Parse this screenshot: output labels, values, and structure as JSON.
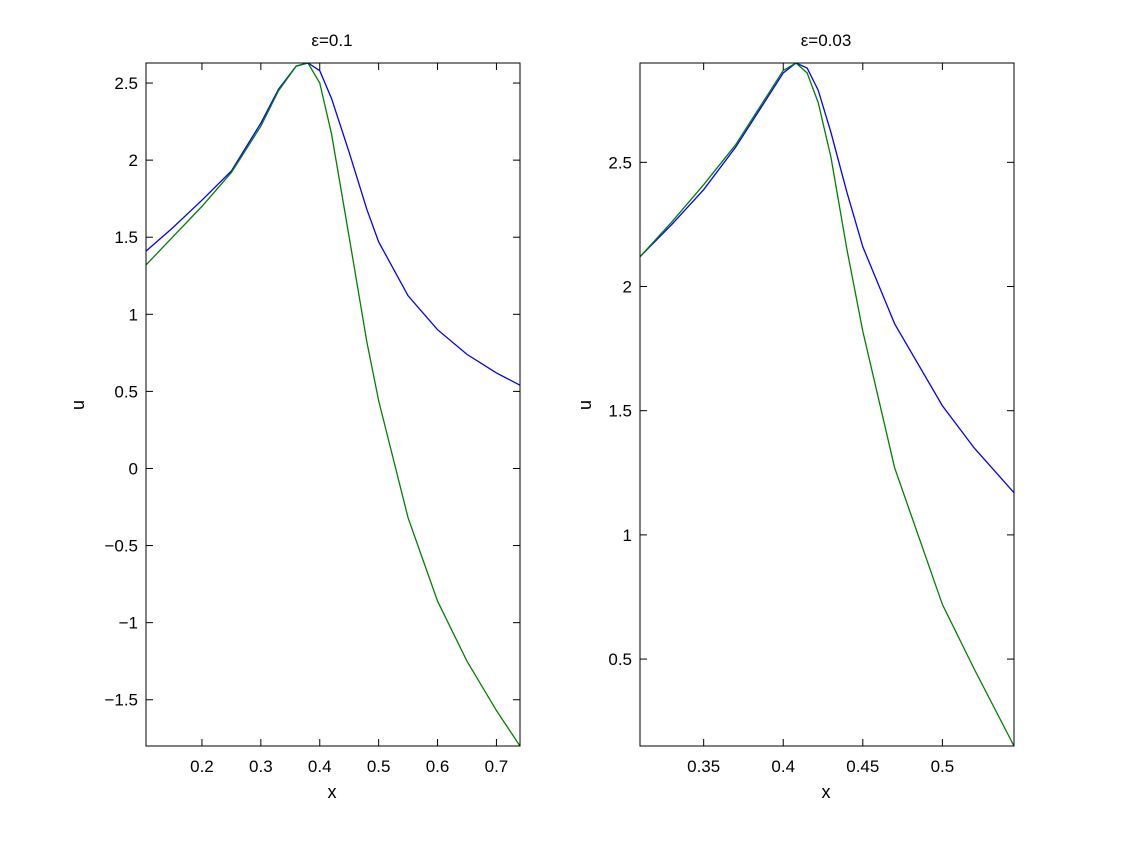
{
  "chart_data": [
    {
      "type": "line",
      "title": "ε=0.1",
      "xlabel": "x",
      "ylabel": "u",
      "xlim": [
        0.105,
        0.74
      ],
      "ylim": [
        -1.8,
        2.63
      ],
      "xticks": [
        0.2,
        0.3,
        0.4,
        0.5,
        0.6,
        0.7
      ],
      "xtick_labels": [
        "0.2",
        "0.3",
        "0.4",
        "0.5",
        "0.6",
        "0.7"
      ],
      "yticks": [
        -1.5,
        -1,
        -0.5,
        0,
        0.5,
        1,
        1.5,
        2,
        2.5
      ],
      "ytick_labels": [
        "−1.5",
        "−1",
        "−0.5",
        "0",
        "0.5",
        "1",
        "1.5",
        "2",
        "2.5"
      ],
      "grid": false,
      "series": [
        {
          "color": "#0000ff",
          "x": [
            0.105,
            0.15,
            0.2,
            0.25,
            0.3,
            0.33,
            0.36,
            0.38,
            0.4,
            0.42,
            0.45,
            0.48,
            0.5,
            0.55,
            0.6,
            0.65,
            0.7,
            0.74
          ],
          "y": [
            1.41,
            1.56,
            1.74,
            1.93,
            2.24,
            2.46,
            2.61,
            2.63,
            2.58,
            2.4,
            2.05,
            1.68,
            1.47,
            1.12,
            0.9,
            0.74,
            0.62,
            0.54
          ]
        },
        {
          "color": "#008000",
          "x": [
            0.105,
            0.15,
            0.2,
            0.25,
            0.3,
            0.33,
            0.36,
            0.38,
            0.4,
            0.42,
            0.45,
            0.48,
            0.5,
            0.55,
            0.6,
            0.65,
            0.7,
            0.74
          ],
          "y": [
            1.32,
            1.5,
            1.7,
            1.92,
            2.22,
            2.45,
            2.61,
            2.63,
            2.5,
            2.17,
            1.5,
            0.82,
            0.44,
            -0.32,
            -0.86,
            -1.25,
            -1.57,
            -1.8
          ]
        }
      ]
    },
    {
      "type": "line",
      "title": "ε=0.03",
      "xlabel": "x",
      "ylabel": "u",
      "xlim": [
        0.31,
        0.545
      ],
      "ylim": [
        0.15,
        2.9
      ],
      "xticks": [
        0.35,
        0.4,
        0.45,
        0.5
      ],
      "xtick_labels": [
        "0.35",
        "0.4",
        "0.45",
        "0.5"
      ],
      "yticks": [
        0.5,
        1,
        1.5,
        2,
        2.5
      ],
      "ytick_labels": [
        "0.5",
        "1",
        "1.5",
        "2",
        "2.5"
      ],
      "grid": false,
      "series": [
        {
          "color": "#0000ff",
          "x": [
            0.31,
            0.33,
            0.35,
            0.37,
            0.39,
            0.4,
            0.408,
            0.415,
            0.422,
            0.43,
            0.44,
            0.45,
            0.47,
            0.5,
            0.52,
            0.545
          ],
          "y": [
            2.12,
            2.25,
            2.39,
            2.56,
            2.76,
            2.86,
            2.9,
            2.88,
            2.79,
            2.62,
            2.38,
            2.16,
            1.85,
            1.52,
            1.35,
            1.17
          ]
        },
        {
          "color": "#008000",
          "x": [
            0.31,
            0.33,
            0.35,
            0.37,
            0.39,
            0.4,
            0.408,
            0.415,
            0.422,
            0.43,
            0.44,
            0.45,
            0.47,
            0.5,
            0.52,
            0.545
          ],
          "y": [
            2.12,
            2.26,
            2.41,
            2.57,
            2.77,
            2.87,
            2.9,
            2.86,
            2.74,
            2.52,
            2.15,
            1.82,
            1.27,
            0.72,
            0.46,
            0.15
          ]
        }
      ]
    }
  ]
}
